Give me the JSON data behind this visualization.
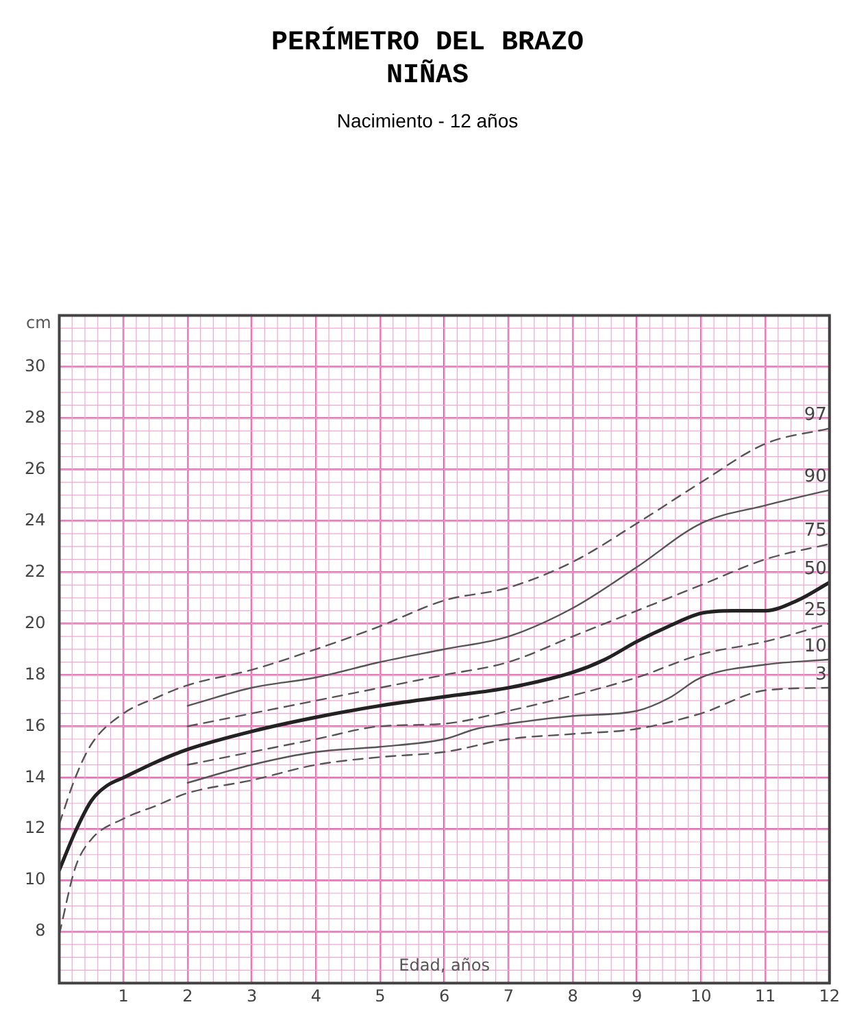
{
  "chart_data": {
    "type": "line",
    "title": "PERÍMETRO DEL BRAZO\nNIÑAS",
    "subtitle": "Nacimiento - 12 años",
    "xlabel": "Edad, años",
    "ylabel": "cm",
    "xlim": [
      0,
      12
    ],
    "xticks": [
      {
        "value": 0,
        "label": null
      },
      1,
      2,
      3,
      4,
      5,
      6,
      7,
      8,
      9,
      10,
      11,
      12
    ],
    "ylim": [
      6,
      32
    ],
    "yticks": [
      {
        "value": 6,
        "label": null
      },
      8,
      10,
      12,
      14,
      16,
      18,
      20,
      22,
      24,
      26,
      28,
      30,
      {
        "value": 32,
        "label": null
      }
    ],
    "grid": true,
    "legend": false,
    "marker": "none",
    "series": [
      {
        "name": "97",
        "color": "#555555",
        "line_style": "dashed",
        "x": [
          0,
          0.25,
          0.5,
          1,
          1.5,
          2,
          3,
          4,
          5,
          6,
          7,
          8,
          9,
          10,
          11,
          12
        ],
        "values": [
          12.2,
          14,
          15.3,
          16.5,
          17.1,
          17.6,
          18.2,
          19,
          19.9,
          20.9,
          21.4,
          22.4,
          23.9,
          25.5,
          27,
          27.6
        ]
      },
      {
        "name": "90",
        "color": "#555555",
        "line_style": "solid",
        "x": [
          2,
          3,
          4,
          5,
          6,
          7,
          8,
          9,
          10,
          11,
          12
        ],
        "values": [
          16.8,
          17.5,
          17.9,
          18.5,
          19,
          19.5,
          20.6,
          22.2,
          23.9,
          24.6,
          25.2
        ]
      },
      {
        "name": "75",
        "color": "#555555",
        "line_style": "dashed",
        "x": [
          2,
          3,
          4,
          5,
          6,
          7,
          8,
          9,
          10,
          11,
          12
        ],
        "values": [
          16,
          16.5,
          17,
          17.5,
          18,
          18.5,
          19.5,
          20.5,
          21.5,
          22.5,
          23.1
        ]
      },
      {
        "name": "50",
        "color": "#222222",
        "line_style": "solid",
        "x": [
          0,
          0.25,
          0.5,
          0.75,
          1,
          1.5,
          2,
          3,
          4,
          5,
          6,
          7,
          8,
          8.5,
          9,
          9.5,
          10,
          10.5,
          11,
          11.5,
          12
        ],
        "values": [
          10.4,
          11.9,
          13.1,
          13.7,
          14,
          14.6,
          15.1,
          15.8,
          16.35,
          16.8,
          17.15,
          17.5,
          18.1,
          18.6,
          19.3,
          19.9,
          20.4,
          20.5,
          20.5,
          20.9,
          21.6
        ]
      },
      {
        "name": "25",
        "color": "#555555",
        "line_style": "dashed",
        "x": [
          2,
          3,
          4,
          5,
          6,
          7,
          8,
          9,
          10,
          11,
          12
        ],
        "values": [
          14.5,
          15,
          15.5,
          16,
          16.1,
          16.6,
          17.2,
          17.9,
          18.8,
          19.3,
          20
        ]
      },
      {
        "name": "10",
        "color": "#555555",
        "line_style": "solid",
        "x": [
          2,
          3,
          4,
          5,
          6,
          6.5,
          7,
          8,
          9,
          9.5,
          10,
          11,
          12
        ],
        "values": [
          13.8,
          14.5,
          15,
          15.2,
          15.5,
          15.9,
          16.1,
          16.4,
          16.6,
          17.1,
          17.9,
          18.4,
          18.6
        ]
      },
      {
        "name": "3",
        "color": "#555555",
        "line_style": "dashed",
        "x": [
          0,
          0.25,
          0.5,
          1,
          1.5,
          2,
          3,
          4,
          5,
          6,
          7,
          8,
          9,
          10,
          11,
          12
        ],
        "values": [
          7.9,
          10.5,
          11.6,
          12.4,
          12.9,
          13.4,
          13.9,
          14.5,
          14.8,
          15,
          15.5,
          15.7,
          15.9,
          16.5,
          17.4,
          17.5
        ]
      }
    ]
  }
}
